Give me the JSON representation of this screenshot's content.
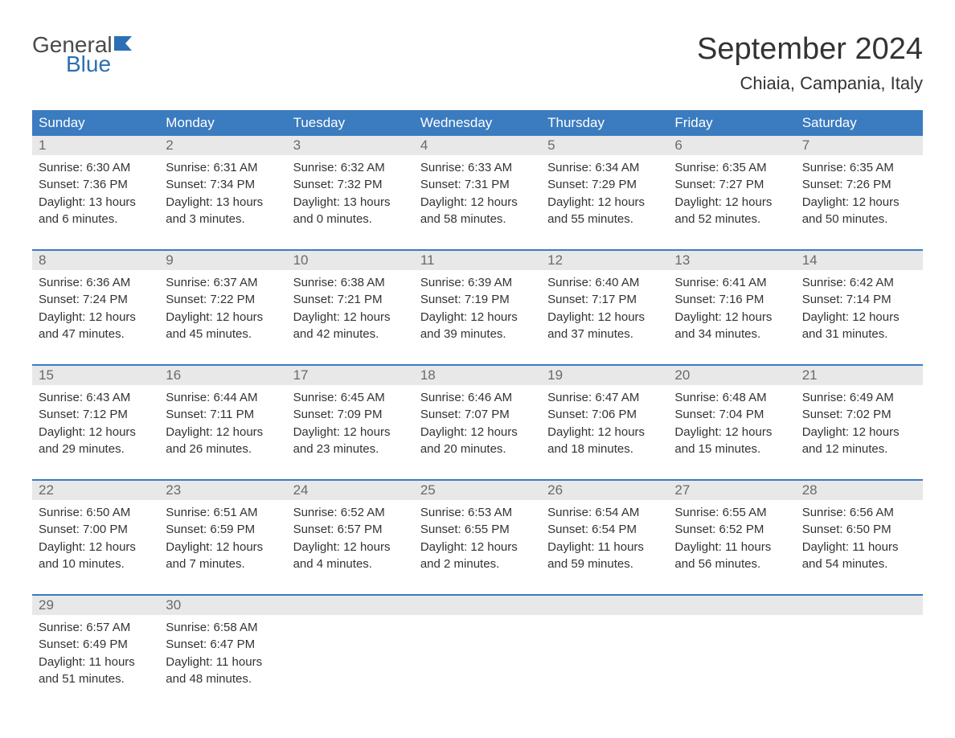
{
  "logo": {
    "text_general": "General",
    "text_blue": "Blue",
    "icon_color": "#2d6fb4"
  },
  "title": "September 2024",
  "location": "Chiaia, Campania, Italy",
  "colors": {
    "header_bg": "#3b7bbf",
    "header_text": "#ffffff",
    "day_number_bg": "#e8e8e8",
    "day_number_text": "#6a6a6a",
    "body_text": "#333333",
    "week_border": "#3b7bbf",
    "logo_general": "#4a4a4a",
    "logo_blue": "#2d6fb4",
    "background": "#ffffff"
  },
  "day_headers": [
    "Sunday",
    "Monday",
    "Tuesday",
    "Wednesday",
    "Thursday",
    "Friday",
    "Saturday"
  ],
  "weeks": [
    [
      {
        "day": "1",
        "sunrise": "Sunrise: 6:30 AM",
        "sunset": "Sunset: 7:36 PM",
        "daylight1": "Daylight: 13 hours",
        "daylight2": "and 6 minutes."
      },
      {
        "day": "2",
        "sunrise": "Sunrise: 6:31 AM",
        "sunset": "Sunset: 7:34 PM",
        "daylight1": "Daylight: 13 hours",
        "daylight2": "and 3 minutes."
      },
      {
        "day": "3",
        "sunrise": "Sunrise: 6:32 AM",
        "sunset": "Sunset: 7:32 PM",
        "daylight1": "Daylight: 13 hours",
        "daylight2": "and 0 minutes."
      },
      {
        "day": "4",
        "sunrise": "Sunrise: 6:33 AM",
        "sunset": "Sunset: 7:31 PM",
        "daylight1": "Daylight: 12 hours",
        "daylight2": "and 58 minutes."
      },
      {
        "day": "5",
        "sunrise": "Sunrise: 6:34 AM",
        "sunset": "Sunset: 7:29 PM",
        "daylight1": "Daylight: 12 hours",
        "daylight2": "and 55 minutes."
      },
      {
        "day": "6",
        "sunrise": "Sunrise: 6:35 AM",
        "sunset": "Sunset: 7:27 PM",
        "daylight1": "Daylight: 12 hours",
        "daylight2": "and 52 minutes."
      },
      {
        "day": "7",
        "sunrise": "Sunrise: 6:35 AM",
        "sunset": "Sunset: 7:26 PM",
        "daylight1": "Daylight: 12 hours",
        "daylight2": "and 50 minutes."
      }
    ],
    [
      {
        "day": "8",
        "sunrise": "Sunrise: 6:36 AM",
        "sunset": "Sunset: 7:24 PM",
        "daylight1": "Daylight: 12 hours",
        "daylight2": "and 47 minutes."
      },
      {
        "day": "9",
        "sunrise": "Sunrise: 6:37 AM",
        "sunset": "Sunset: 7:22 PM",
        "daylight1": "Daylight: 12 hours",
        "daylight2": "and 45 minutes."
      },
      {
        "day": "10",
        "sunrise": "Sunrise: 6:38 AM",
        "sunset": "Sunset: 7:21 PM",
        "daylight1": "Daylight: 12 hours",
        "daylight2": "and 42 minutes."
      },
      {
        "day": "11",
        "sunrise": "Sunrise: 6:39 AM",
        "sunset": "Sunset: 7:19 PM",
        "daylight1": "Daylight: 12 hours",
        "daylight2": "and 39 minutes."
      },
      {
        "day": "12",
        "sunrise": "Sunrise: 6:40 AM",
        "sunset": "Sunset: 7:17 PM",
        "daylight1": "Daylight: 12 hours",
        "daylight2": "and 37 minutes."
      },
      {
        "day": "13",
        "sunrise": "Sunrise: 6:41 AM",
        "sunset": "Sunset: 7:16 PM",
        "daylight1": "Daylight: 12 hours",
        "daylight2": "and 34 minutes."
      },
      {
        "day": "14",
        "sunrise": "Sunrise: 6:42 AM",
        "sunset": "Sunset: 7:14 PM",
        "daylight1": "Daylight: 12 hours",
        "daylight2": "and 31 minutes."
      }
    ],
    [
      {
        "day": "15",
        "sunrise": "Sunrise: 6:43 AM",
        "sunset": "Sunset: 7:12 PM",
        "daylight1": "Daylight: 12 hours",
        "daylight2": "and 29 minutes."
      },
      {
        "day": "16",
        "sunrise": "Sunrise: 6:44 AM",
        "sunset": "Sunset: 7:11 PM",
        "daylight1": "Daylight: 12 hours",
        "daylight2": "and 26 minutes."
      },
      {
        "day": "17",
        "sunrise": "Sunrise: 6:45 AM",
        "sunset": "Sunset: 7:09 PM",
        "daylight1": "Daylight: 12 hours",
        "daylight2": "and 23 minutes."
      },
      {
        "day": "18",
        "sunrise": "Sunrise: 6:46 AM",
        "sunset": "Sunset: 7:07 PM",
        "daylight1": "Daylight: 12 hours",
        "daylight2": "and 20 minutes."
      },
      {
        "day": "19",
        "sunrise": "Sunrise: 6:47 AM",
        "sunset": "Sunset: 7:06 PM",
        "daylight1": "Daylight: 12 hours",
        "daylight2": "and 18 minutes."
      },
      {
        "day": "20",
        "sunrise": "Sunrise: 6:48 AM",
        "sunset": "Sunset: 7:04 PM",
        "daylight1": "Daylight: 12 hours",
        "daylight2": "and 15 minutes."
      },
      {
        "day": "21",
        "sunrise": "Sunrise: 6:49 AM",
        "sunset": "Sunset: 7:02 PM",
        "daylight1": "Daylight: 12 hours",
        "daylight2": "and 12 minutes."
      }
    ],
    [
      {
        "day": "22",
        "sunrise": "Sunrise: 6:50 AM",
        "sunset": "Sunset: 7:00 PM",
        "daylight1": "Daylight: 12 hours",
        "daylight2": "and 10 minutes."
      },
      {
        "day": "23",
        "sunrise": "Sunrise: 6:51 AM",
        "sunset": "Sunset: 6:59 PM",
        "daylight1": "Daylight: 12 hours",
        "daylight2": "and 7 minutes."
      },
      {
        "day": "24",
        "sunrise": "Sunrise: 6:52 AM",
        "sunset": "Sunset: 6:57 PM",
        "daylight1": "Daylight: 12 hours",
        "daylight2": "and 4 minutes."
      },
      {
        "day": "25",
        "sunrise": "Sunrise: 6:53 AM",
        "sunset": "Sunset: 6:55 PM",
        "daylight1": "Daylight: 12 hours",
        "daylight2": "and 2 minutes."
      },
      {
        "day": "26",
        "sunrise": "Sunrise: 6:54 AM",
        "sunset": "Sunset: 6:54 PM",
        "daylight1": "Daylight: 11 hours",
        "daylight2": "and 59 minutes."
      },
      {
        "day": "27",
        "sunrise": "Sunrise: 6:55 AM",
        "sunset": "Sunset: 6:52 PM",
        "daylight1": "Daylight: 11 hours",
        "daylight2": "and 56 minutes."
      },
      {
        "day": "28",
        "sunrise": "Sunrise: 6:56 AM",
        "sunset": "Sunset: 6:50 PM",
        "daylight1": "Daylight: 11 hours",
        "daylight2": "and 54 minutes."
      }
    ],
    [
      {
        "day": "29",
        "sunrise": "Sunrise: 6:57 AM",
        "sunset": "Sunset: 6:49 PM",
        "daylight1": "Daylight: 11 hours",
        "daylight2": "and 51 minutes."
      },
      {
        "day": "30",
        "sunrise": "Sunrise: 6:58 AM",
        "sunset": "Sunset: 6:47 PM",
        "daylight1": "Daylight: 11 hours",
        "daylight2": "and 48 minutes."
      },
      {
        "empty": true
      },
      {
        "empty": true
      },
      {
        "empty": true
      },
      {
        "empty": true
      },
      {
        "empty": true
      }
    ]
  ]
}
